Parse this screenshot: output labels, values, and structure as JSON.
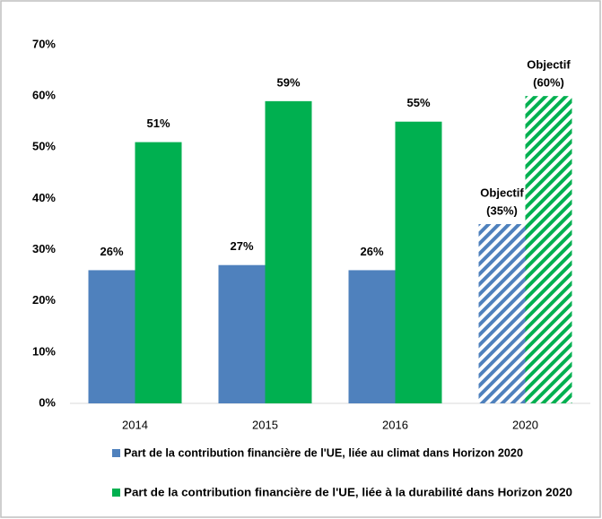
{
  "chart_data": {
    "type": "bar",
    "categories": [
      "2014",
      "2015",
      "2016",
      "2020"
    ],
    "series": [
      {
        "name": "Part de la contribution financière de l'UE, liée au climat dans Horizon 2020",
        "color": "#4f81bd",
        "values": [
          26,
          27,
          26,
          35
        ],
        "value_labels": [
          "26%",
          "27%",
          "26%",
          [
            "Objectif",
            "(35%)"
          ]
        ],
        "hatch": [
          false,
          false,
          false,
          true
        ]
      },
      {
        "name": "Part de la contribution financière de l'UE, liée à la durabilité dans Horizon 2020",
        "color": "#00b050",
        "values": [
          51,
          59,
          55,
          60
        ],
        "value_labels": [
          "51%",
          "59%",
          "55%",
          [
            "Objectif",
            "(60%)"
          ]
        ],
        "hatch": [
          false,
          false,
          false,
          true
        ]
      }
    ],
    "ylim": [
      0,
      70
    ],
    "yticks": [
      {
        "value": 0,
        "label": "0%"
      },
      {
        "value": 10,
        "label": "10%"
      },
      {
        "value": 20,
        "label": "20%"
      },
      {
        "value": 30,
        "label": "30%"
      },
      {
        "value": 40,
        "label": "40%"
      },
      {
        "value": 50,
        "label": "50%"
      },
      {
        "value": 60,
        "label": "60%"
      },
      {
        "value": 70,
        "label": "70%"
      }
    ],
    "grid": false,
    "legend": "bottom"
  }
}
